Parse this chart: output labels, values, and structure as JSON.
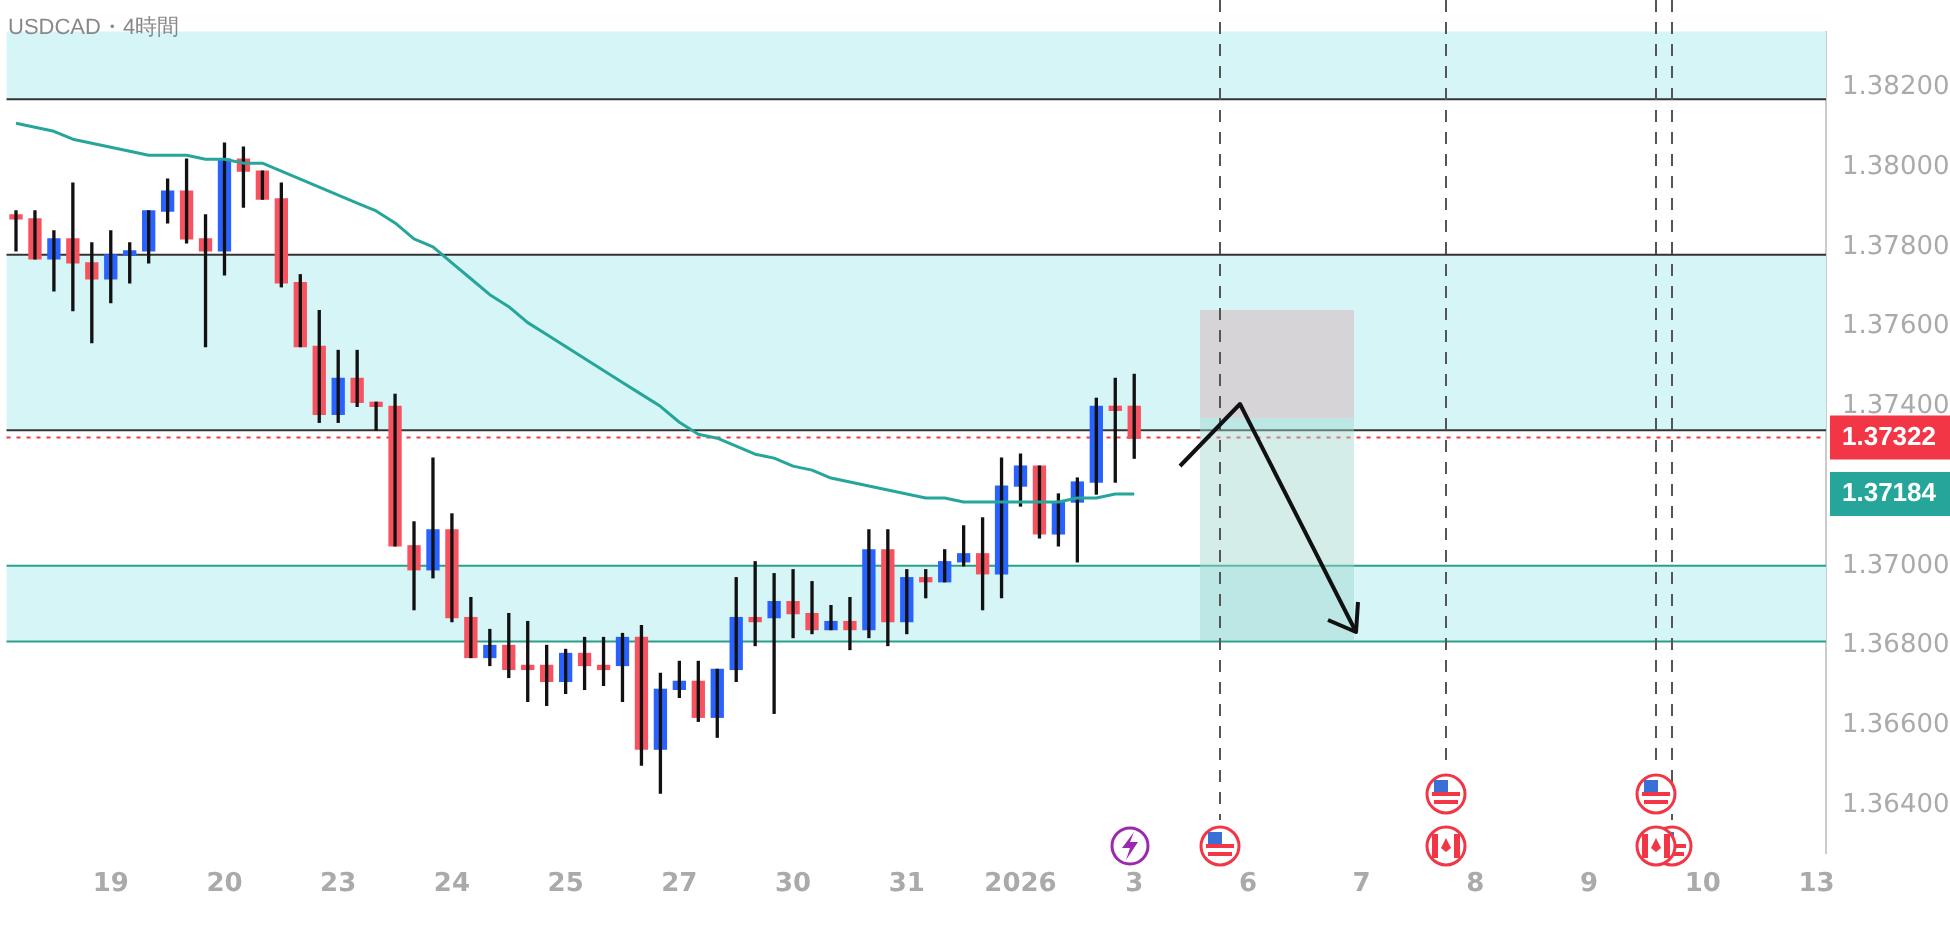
{
  "chart_data": {
    "type": "candlestick",
    "title": "USDCAD・4時間",
    "categories": [
      null,
      null,
      null,
      null,
      null,
      "19",
      null,
      null,
      null,
      null,
      null,
      "20",
      null,
      null,
      null,
      null,
      null,
      "23",
      null,
      null,
      null,
      null,
      null,
      "24",
      null,
      null,
      null,
      null,
      null,
      "25",
      null,
      null,
      null,
      null,
      null,
      "27",
      null,
      null,
      null,
      null,
      null,
      "30",
      null,
      null,
      null,
      null,
      null,
      "31",
      null,
      null,
      null,
      null,
      null,
      "2026",
      null,
      null,
      null,
      null,
      null,
      "3",
      null,
      null,
      null,
      null,
      null,
      "6",
      null,
      null,
      null,
      null,
      null,
      "7",
      null,
      null,
      null,
      null,
      null,
      "8",
      null,
      null,
      null,
      null,
      null,
      "9",
      null,
      null,
      null,
      null,
      null,
      "10",
      null,
      null,
      null,
      null,
      null,
      "13"
    ],
    "ohlc": [
      [
        1.3788,
        1.3789,
        1.3779,
        1.3787
      ],
      [
        1.3787,
        1.3789,
        1.3777,
        1.3777
      ],
      [
        1.3777,
        1.3784,
        1.3769,
        1.3782
      ],
      [
        1.3782,
        1.3796,
        1.3764,
        1.3776
      ],
      [
        1.3776,
        1.3781,
        1.3756,
        1.3772
      ],
      [
        1.3772,
        1.3784,
        1.3766,
        1.3778
      ],
      [
        1.3778,
        1.3781,
        1.3771,
        1.3779
      ],
      [
        1.3779,
        1.3789,
        1.3776,
        1.3789
      ],
      [
        1.3789,
        1.3797,
        1.3786,
        1.3794
      ],
      [
        1.3794,
        1.3802,
        1.3781,
        1.3782
      ],
      [
        1.3782,
        1.3788,
        1.3755,
        1.3779
      ],
      [
        1.3779,
        1.3806,
        1.3773,
        1.3802
      ],
      [
        1.3802,
        1.3805,
        1.379,
        1.3799
      ],
      [
        1.3799,
        1.3799,
        1.3792,
        1.3792
      ],
      [
        1.3792,
        1.3796,
        1.377,
        1.3771
      ],
      [
        1.3771,
        1.3773,
        1.3755,
        1.3755
      ],
      [
        1.3755,
        1.3764,
        1.3736,
        1.3738
      ],
      [
        1.3738,
        1.3754,
        1.3736,
        1.3747
      ],
      [
        1.3747,
        1.3754,
        1.374,
        1.3741
      ],
      [
        1.3741,
        1.3741,
        1.3734,
        1.374
      ],
      [
        1.374,
        1.3743,
        1.3705,
        1.3705
      ],
      [
        1.3705,
        1.3711,
        1.3689,
        1.3699
      ],
      [
        1.3699,
        1.3727,
        1.3697,
        1.3709
      ],
      [
        1.3709,
        1.3713,
        1.3686,
        1.3687
      ],
      [
        1.3687,
        1.3692,
        1.3677,
        1.3677
      ],
      [
        1.3677,
        1.3684,
        1.3675,
        1.368
      ],
      [
        1.368,
        1.3688,
        1.3672,
        1.3674
      ],
      [
        1.3675,
        1.3686,
        1.3666,
        1.3674
      ],
      [
        1.3675,
        1.368,
        1.3665,
        1.3671
      ],
      [
        1.3671,
        1.3679,
        1.3668,
        1.3678
      ],
      [
        1.3678,
        1.3682,
        1.3669,
        1.3675
      ],
      [
        1.3675,
        1.3682,
        1.367,
        1.3674
      ],
      [
        1.3675,
        1.3683,
        1.3666,
        1.3682
      ],
      [
        1.3682,
        1.3685,
        1.365,
        1.3654
      ],
      [
        1.3654,
        1.3673,
        1.3643,
        1.3669
      ],
      [
        1.3669,
        1.3676,
        1.3667,
        1.3671
      ],
      [
        1.3671,
        1.3676,
        1.3661,
        1.3662
      ],
      [
        1.3662,
        1.3674,
        1.3657,
        1.3674
      ],
      [
        1.3674,
        1.3697,
        1.3671,
        1.3687
      ],
      [
        1.3687,
        1.3701,
        1.368,
        1.3686
      ],
      [
        1.3687,
        1.3698,
        1.3663,
        1.3691
      ],
      [
        1.3691,
        1.3699,
        1.3682,
        1.3688
      ],
      [
        1.3688,
        1.3696,
        1.3683,
        1.3684
      ],
      [
        1.3684,
        1.369,
        1.3684,
        1.3686
      ],
      [
        1.3686,
        1.3692,
        1.3679,
        1.3684
      ],
      [
        1.3684,
        1.3709,
        1.3682,
        1.3704
      ],
      [
        1.3704,
        1.3709,
        1.368,
        1.3686
      ],
      [
        1.3686,
        1.3699,
        1.3683,
        1.3697
      ],
      [
        1.3697,
        1.3699,
        1.3692,
        1.3696
      ],
      [
        1.3696,
        1.3704,
        1.3696,
        1.3701
      ],
      [
        1.3701,
        1.371,
        1.37,
        1.3703
      ],
      [
        1.3703,
        1.3712,
        1.3689,
        1.3698
      ],
      [
        1.3698,
        1.3727,
        1.3692,
        1.372
      ],
      [
        1.372,
        1.3728,
        1.3715,
        1.3725
      ],
      [
        1.3725,
        1.3725,
        1.3707,
        1.3708
      ],
      [
        1.3708,
        1.3718,
        1.3705,
        1.3716
      ],
      [
        1.3716,
        1.3722,
        1.3701,
        1.3721
      ],
      [
        1.3721,
        1.3742,
        1.3718,
        1.374
      ],
      [
        1.374,
        1.3747,
        1.3721,
        1.3739
      ],
      [
        1.374,
        1.3748,
        1.3727,
        1.3732
      ],
      null,
      null,
      null,
      null,
      null,
      null,
      null,
      null,
      null,
      null,
      null,
      null,
      null,
      null,
      null,
      null,
      null,
      null,
      null,
      null,
      null,
      null,
      null,
      null,
      null,
      null,
      null,
      null,
      null,
      null,
      null,
      null,
      null,
      null,
      null,
      null
    ],
    "colors": [
      "#f7525f",
      "#f7525f",
      "#2962ff",
      "#f7525f",
      "#f7525f",
      "#2962ff",
      "#2962ff",
      "#2962ff",
      "#2962ff",
      "#f7525f",
      "#f7525f",
      "#2962ff",
      "#f7525f",
      "#f7525f",
      "#f7525f",
      "#f7525f",
      "#f7525f",
      "#2962ff",
      "#f7525f",
      "#f7525f",
      "#f7525f",
      "#f7525f",
      "#2962ff",
      "#f7525f",
      "#f7525f",
      "#2962ff",
      "#f7525f",
      "#f7525f",
      "#f7525f",
      "#2962ff",
      "#f7525f",
      "#f7525f",
      "#2962ff",
      "#f7525f",
      "#2962ff",
      "#2962ff",
      "#f7525f",
      "#2962ff",
      "#2962ff",
      "#f7525f",
      "#2962ff",
      "#f7525f",
      "#f7525f",
      "#2962ff",
      "#f7525f",
      "#2962ff",
      "#f7525f",
      "#2962ff",
      "#f7525f",
      "#2962ff",
      "#2962ff",
      "#f7525f",
      "#2962ff",
      "#2962ff",
      "#f7525f",
      "#2962ff",
      "#2962ff",
      "#2962ff",
      "#f7525f",
      "#f7525f",
      null,
      null,
      null,
      null,
      null,
      null,
      null,
      null,
      null,
      null,
      null,
      null,
      null,
      null,
      null,
      null,
      null,
      null,
      null,
      null,
      null,
      null,
      null,
      null,
      null,
      null,
      null,
      null,
      null,
      null,
      null,
      null,
      null,
      null,
      null,
      null
    ],
    "series": [
      {
        "type": "line",
        "color": "#26a69a",
        "values": [
          1.3811,
          1.381,
          1.3809,
          1.3807,
          1.3806,
          1.3805,
          1.3804,
          1.3803,
          1.3803,
          1.3803,
          1.3802,
          1.3802,
          1.3801,
          1.3801,
          1.3799,
          1.3797,
          1.3795,
          1.3793,
          1.3791,
          1.3789,
          1.3786,
          1.3782,
          1.378,
          1.3776,
          1.3772,
          1.3768,
          1.3765,
          1.3761,
          1.3758,
          1.3755,
          1.3752,
          1.3749,
          1.3746,
          1.3743,
          1.374,
          1.3736,
          1.3733,
          1.3732,
          1.373,
          1.3728,
          1.3727,
          1.3725,
          1.3724,
          1.3722,
          1.3721,
          1.372,
          1.3719,
          1.3718,
          1.3717,
          1.3717,
          1.3716,
          1.3716,
          1.3716,
          1.3716,
          1.3716,
          1.3716,
          1.3717,
          1.3717,
          1.3718,
          1.3718,
          null,
          null,
          null,
          null,
          null,
          null,
          null,
          null,
          null,
          null,
          null,
          null,
          null,
          null,
          null,
          null,
          null,
          null,
          null,
          null,
          null,
          null,
          null,
          null,
          null,
          null,
          null,
          null,
          null,
          null,
          null,
          null,
          null,
          null,
          null,
          null
        ]
      }
    ],
    "ylim": [
      1.3628,
      1.3834
    ],
    "yticks": [
      {
        "value": 1.364,
        "label": "1.36400"
      },
      {
        "value": 1.366,
        "label": "1.36600"
      },
      {
        "value": 1.368,
        "label": "1.36800"
      },
      {
        "value": 1.37,
        "label": "1.37000"
      },
      {
        "value": 1.374,
        "label": "1.37400"
      },
      {
        "value": 1.376,
        "label": "1.37600"
      },
      {
        "value": 1.378,
        "label": "1.37800"
      },
      {
        "value": 1.38,
        "label": "1.38000"
      },
      {
        "value": 1.382,
        "label": "1.38200"
      }
    ],
    "bands": [
      {
        "axis": "y",
        "from": 1.3817,
        "to": 1.3834,
        "color": "#d6f5f7"
      },
      {
        "axis": "y",
        "from": 1.3734,
        "to": 1.3778,
        "color": "#d6f5f7"
      },
      {
        "axis": "y",
        "from": 1.3681,
        "to": 1.37,
        "color": "#d6f5f7"
      }
    ],
    "ref_lines": [
      {
        "axis": "y",
        "value": 1.3817,
        "color": "#333333",
        "line_style": "solid"
      },
      {
        "axis": "y",
        "value": 1.3778,
        "color": "#333333",
        "line_style": "solid"
      },
      {
        "axis": "y",
        "value": 1.3734,
        "color": "#333333",
        "line_style": "solid"
      },
      {
        "axis": "y",
        "value": 1.37,
        "color": "#2aa08a",
        "line_style": "solid"
      },
      {
        "axis": "y",
        "value": 1.3681,
        "color": "#2aa08a",
        "line_style": "solid"
      },
      {
        "axis": "y",
        "value": 1.37322,
        "label": "1.37322",
        "color": "#f23645",
        "line_style": "dotted"
      }
    ],
    "annotations": [
      "1.37184"
    ],
    "grid": false,
    "legend": false
  }
}
